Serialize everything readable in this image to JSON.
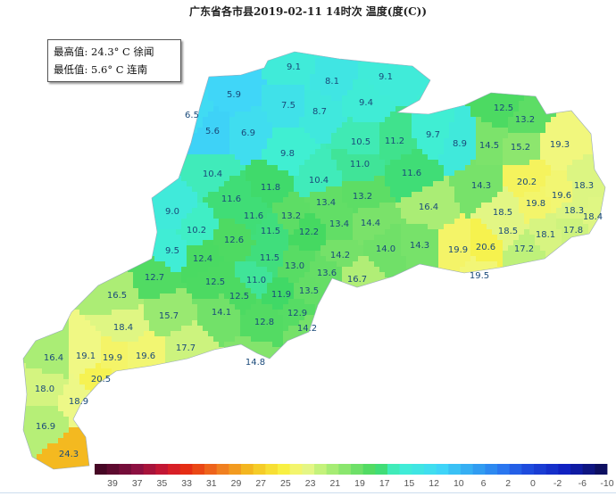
{
  "title": "广东省各市县2019-02-11  14时次 温度(度(C))",
  "legend": {
    "max_line": "最高值: 24.3° C 徐闻",
    "min_line": "最低值: 5.6° C 连南"
  },
  "station_values": [
    "9.1",
    "8.1",
    "9.1",
    "5.9",
    "7.5",
    "8.7",
    "9.4",
    "6.5",
    "5.6",
    "6.9",
    "10.5",
    "11.2",
    "9.7",
    "8.9",
    "9.8",
    "11.0",
    "11.6",
    "12.5",
    "13.2",
    "14.5",
    "15.2",
    "19.3",
    "10.4",
    "10.4",
    "11.8",
    "13.4",
    "13.2",
    "14.3",
    "20.2",
    "18.3",
    "11.6",
    "19.6",
    "9.0",
    "11.6",
    "13.2",
    "13.4",
    "14.4",
    "16.4",
    "18.5",
    "19.8",
    "18.3",
    "18.4",
    "10.2",
    "11.5",
    "12.2",
    "12.6",
    "18.5",
    "18.1",
    "17.8",
    "14.2",
    "14.0",
    "14.3",
    "9.5",
    "12.4",
    "11.5",
    "13.0",
    "19.9",
    "20.6",
    "17.2",
    "12.7",
    "13.6",
    "19.5",
    "16.5",
    "12.5",
    "11.0",
    "11.9",
    "16.7",
    "12.5",
    "13.5",
    "15.7",
    "14.1",
    "12.9",
    "18.4",
    "12.8",
    "14.2",
    "17.7",
    "16.4",
    "19.1",
    "19.9",
    "19.6",
    "14.8",
    "20.5",
    "18.0",
    "18.9",
    "16.9",
    "24.3"
  ],
  "colorbar": {
    "ticks": [
      "39",
      "37",
      "35",
      "33",
      "31",
      "29",
      "27",
      "25",
      "23",
      "21",
      "19",
      "17",
      "15",
      "12",
      "10",
      "6",
      "2",
      "0",
      "-2",
      "-6",
      "-10"
    ],
    "stops": [
      [
        39,
        "#3a0620"
      ],
      [
        35,
        "#8a1042"
      ],
      [
        32,
        "#d01830"
      ],
      [
        30,
        "#e83010"
      ],
      [
        27,
        "#f07a20"
      ],
      [
        24,
        "#f4c020"
      ],
      [
        21,
        "#f8f040"
      ],
      [
        19,
        "#f0f888"
      ],
      [
        17,
        "#b8f078"
      ],
      [
        14,
        "#70e068"
      ],
      [
        12,
        "#40d860"
      ],
      [
        10,
        "#40f0d0"
      ],
      [
        6,
        "#40d8f8"
      ],
      [
        2,
        "#3098f0"
      ],
      [
        0,
        "#2a78f0"
      ],
      [
        -2,
        "#2050e0"
      ],
      [
        -6,
        "#1020c0"
      ],
      [
        -10,
        "#0c0c50"
      ]
    ]
  }
}
